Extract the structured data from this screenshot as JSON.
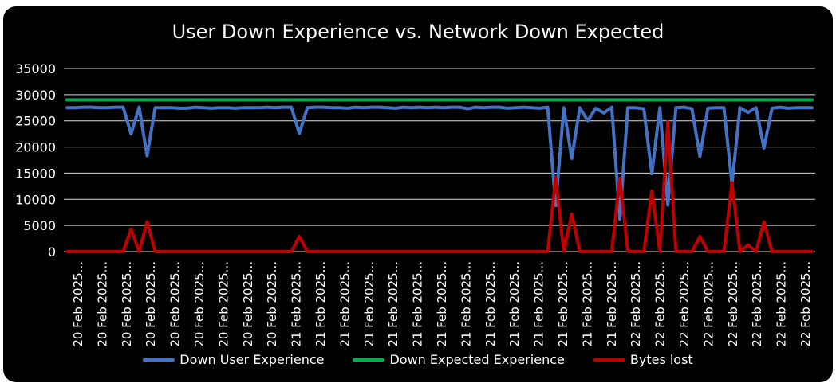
{
  "chart_data": {
    "type": "line",
    "title": "User Down Experience vs. Network Down Expected",
    "xlabel": "",
    "ylabel": "",
    "ylim": [
      0,
      35000
    ],
    "yticks": [
      "0",
      "5000",
      "10000",
      "15000",
      "20000",
      "25000",
      "30000",
      "35000"
    ],
    "grid": true,
    "legend_position": "bottom",
    "tick_labels": [
      "20 Feb 2025...",
      "20 Feb 2025...",
      "20 Feb 2025...",
      "20 Feb 2025...",
      "20 Feb 2025...",
      "20 Feb 2025...",
      "20 Feb 2025...",
      "20 Feb 2025...",
      "20 Feb 2025...",
      "21 Feb 2025...",
      "21 Feb 2025...",
      "21 Feb 2025...",
      "21 Feb 2025...",
      "21 Feb 2025...",
      "21 Feb 2025...",
      "21 Feb 2025...",
      "21 Feb 2025...",
      "21 Feb 2025...",
      "21 Feb 2025...",
      "21 Feb 2025...",
      "21 Feb 2025...",
      "21 Feb 2025...",
      "21 Feb 2025...",
      "22 Feb 2025...",
      "22 Feb 2025...",
      "22 Feb 2025...",
      "22 Feb 2025...",
      "22 Feb 2025...",
      "22 Feb 2025...",
      "22 Feb 2025...",
      "22 Feb 2025..."
    ],
    "series": [
      {
        "name": "Down User Experience",
        "color": "#4472C4",
        "values": [
          27500,
          27500,
          27600,
          27600,
          27500,
          27500,
          27600,
          27600,
          22500,
          27600,
          18300,
          27500,
          27500,
          27500,
          27400,
          27400,
          27600,
          27500,
          27400,
          27500,
          27500,
          27400,
          27500,
          27500,
          27500,
          27600,
          27500,
          27600,
          27600,
          22600,
          27500,
          27600,
          27600,
          27500,
          27500,
          27400,
          27600,
          27500,
          27600,
          27600,
          27500,
          27400,
          27600,
          27500,
          27600,
          27500,
          27600,
          27500,
          27600,
          27600,
          27300,
          27600,
          27500,
          27600,
          27600,
          27400,
          27500,
          27600,
          27500,
          27400,
          27600,
          8800,
          27500,
          17800,
          27500,
          25000,
          27400,
          26500,
          27600,
          6200,
          27500,
          27500,
          27300,
          14900,
          27500,
          8900,
          27500,
          27600,
          27300,
          18200,
          27400,
          27500,
          27500,
          12900,
          27500,
          26600,
          27500,
          19800,
          27400,
          27600,
          27400,
          27500,
          27500,
          27500
        ]
      },
      {
        "name": "Down Expected Experience",
        "color": "#00B050",
        "values": [
          29000,
          29000,
          29000,
          29000,
          29000,
          29000,
          29000,
          29000,
          29000,
          29000,
          29000,
          29000,
          29000,
          29000,
          29000,
          29000,
          29000,
          29000,
          29000,
          29000,
          29000,
          29000,
          29000,
          29000,
          29000,
          29000,
          29000,
          29000,
          29000,
          29000,
          29000,
          29000,
          29000,
          29000,
          29000,
          29000,
          29000,
          29000,
          29000,
          29000,
          29000,
          29000,
          29000,
          29000,
          29000,
          29000,
          29000,
          29000,
          29000,
          29000,
          29000,
          29000,
          29000,
          29000,
          29000,
          29000,
          29000,
          29000,
          29000,
          29000,
          29000,
          29000,
          29000,
          29000,
          29000,
          29000,
          29000,
          29000,
          29000,
          29000,
          29000,
          29000,
          29000,
          29000,
          29000,
          29000,
          29000,
          29000,
          29000,
          29000,
          29000,
          29000,
          29000,
          29000,
          29000,
          29000,
          29000,
          29000,
          29000,
          29000,
          29000,
          29000,
          29000,
          29000
        ]
      },
      {
        "name": "Bytes lost",
        "color": "#C00000",
        "values": [
          0,
          0,
          0,
          0,
          0,
          0,
          0,
          0,
          4300,
          0,
          5700,
          0,
          0,
          0,
          0,
          0,
          0,
          0,
          0,
          0,
          0,
          0,
          0,
          0,
          0,
          0,
          0,
          0,
          0,
          2900,
          0,
          0,
          0,
          0,
          0,
          0,
          0,
          0,
          0,
          0,
          0,
          0,
          0,
          0,
          0,
          0,
          0,
          0,
          0,
          0,
          0,
          0,
          0,
          0,
          0,
          0,
          0,
          0,
          0,
          0,
          0,
          14200,
          0,
          7200,
          0,
          0,
          0,
          0,
          0,
          14000,
          0,
          0,
          0,
          11600,
          0,
          24800,
          0,
          0,
          0,
          2900,
          0,
          0,
          0,
          13200,
          0,
          1300,
          0,
          5700,
          0,
          0,
          0,
          0,
          0,
          0
        ]
      }
    ]
  }
}
